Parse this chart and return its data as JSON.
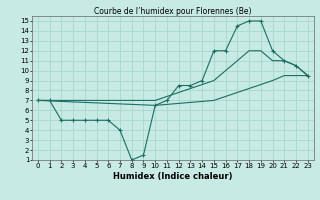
{
  "title": "Courbe de l’humidex pour Florennes (Be)",
  "xlabel": "Humidex (Indice chaleur)",
  "bg_color": "#c8eae4",
  "grid_color": "#a8d8cc",
  "line_color": "#1a6e62",
  "xlim": [
    -0.5,
    23.5
  ],
  "ylim": [
    1,
    15.5
  ],
  "xticks": [
    0,
    1,
    2,
    3,
    4,
    5,
    6,
    7,
    8,
    9,
    10,
    11,
    12,
    13,
    14,
    15,
    16,
    17,
    18,
    19,
    20,
    21,
    22,
    23
  ],
  "yticks": [
    1,
    2,
    3,
    4,
    5,
    6,
    7,
    8,
    9,
    10,
    11,
    12,
    13,
    14,
    15
  ],
  "curves": [
    {
      "x": [
        0,
        1,
        2,
        3,
        4,
        5,
        6,
        7,
        8,
        9,
        10,
        11,
        12,
        13,
        14,
        15,
        16,
        17,
        18,
        19,
        20,
        21,
        22,
        23
      ],
      "y": [
        7,
        7,
        5,
        5,
        5,
        5,
        5,
        4,
        1,
        1.5,
        6.5,
        7,
        8.5,
        8.5,
        9,
        12,
        12,
        14.5,
        15,
        15,
        12,
        11,
        10.5,
        9.5
      ],
      "markers": true
    },
    {
      "x": [
        0,
        10,
        15,
        16,
        17,
        18,
        19,
        20,
        21,
        22,
        23
      ],
      "y": [
        7,
        7,
        9,
        10,
        11,
        12,
        12,
        11,
        11,
        10.5,
        9.5
      ],
      "markers": false
    },
    {
      "x": [
        0,
        10,
        15,
        20,
        21,
        22,
        23
      ],
      "y": [
        7,
        6.5,
        7,
        9,
        9.5,
        9.5,
        9.5
      ],
      "markers": false
    }
  ],
  "title_fontsize": 5.5,
  "xlabel_fontsize": 6.0,
  "tick_fontsize": 5.0
}
